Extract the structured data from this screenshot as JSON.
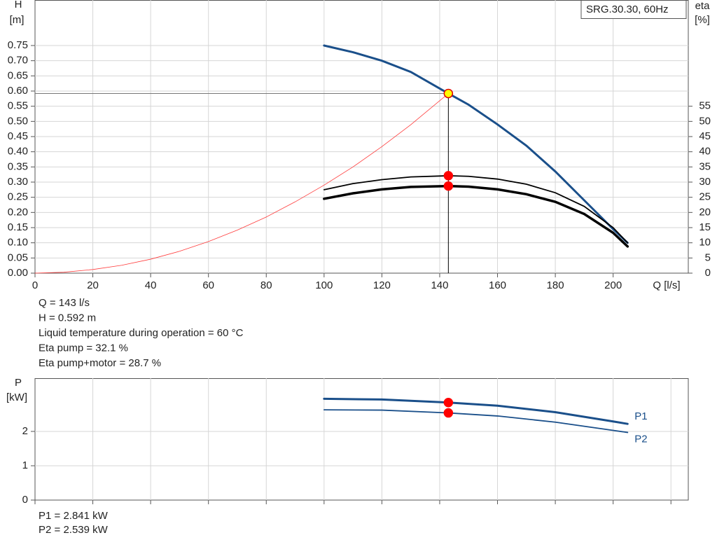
{
  "chart_data": [
    {
      "type": "line",
      "legend_text": "SRG.30.30, 60Hz",
      "xlabel": "Q [l/s]",
      "ylabel": "H",
      "yunit": "[m]",
      "y2label": "eta",
      "y2unit": "[%]",
      "xlim": [
        0,
        226
      ],
      "xticks": [
        0,
        20,
        40,
        60,
        80,
        100,
        120,
        140,
        160,
        180,
        200
      ],
      "ylim": [
        0,
        0.9
      ],
      "yticks": [
        {
          "value": 0,
          "label": "0.00"
        },
        {
          "value": 0.05,
          "label": "0.05"
        },
        {
          "value": 0.1,
          "label": "0.10"
        },
        {
          "value": 0.15,
          "label": "0.15"
        },
        {
          "value": 0.2,
          "label": "0.20"
        },
        {
          "value": 0.25,
          "label": "0.25"
        },
        {
          "value": 0.3,
          "label": "0.30"
        },
        {
          "value": 0.35,
          "label": "0.35"
        },
        {
          "value": 0.4,
          "label": "0.40"
        },
        {
          "value": 0.45,
          "label": "0.45"
        },
        {
          "value": 0.5,
          "label": "0.50"
        },
        {
          "value": 0.55,
          "label": "0.55"
        },
        {
          "value": 0.6,
          "label": "0.60"
        },
        {
          "value": 0.65,
          "label": "0.65"
        },
        {
          "value": 0.7,
          "label": "0.70"
        },
        {
          "value": 0.75,
          "label": "0.75"
        }
      ],
      "y2lim": [
        0,
        90
      ],
      "y2ticks": [
        0,
        5,
        10,
        15,
        20,
        25,
        30,
        35,
        40,
        45,
        50,
        55
      ],
      "grid": true,
      "series": [
        {
          "color": "#9e9e9e",
          "width": 0.8,
          "line_color": "#ff3b3b",
          "x": [
            0,
            10,
            20,
            30,
            40,
            50,
            60,
            70,
            80,
            90,
            100,
            110,
            120,
            130,
            143
          ],
          "values": [
            0,
            0.003,
            0.012,
            0.026,
            0.046,
            0.072,
            0.104,
            0.142,
            0.185,
            0.235,
            0.29,
            0.35,
            0.417,
            0.489,
            0.592
          ]
        },
        {
          "line_color": "#1a4f8a",
          "width": 3,
          "x": [
            100,
            110,
            120,
            130,
            143,
            150,
            160,
            170,
            180,
            190,
            200,
            205
          ],
          "values": [
            0.75,
            0.728,
            0.7,
            0.663,
            0.592,
            0.555,
            0.49,
            0.42,
            0.335,
            0.24,
            0.145,
            0.1
          ]
        },
        {
          "line_color": "#000000",
          "width": 1.8,
          "axis": "y2",
          "x": [
            100,
            110,
            120,
            130,
            143,
            150,
            160,
            170,
            180,
            190,
            200,
            205
          ],
          "values": [
            27.5,
            29.5,
            30.8,
            31.7,
            32.1,
            31.9,
            31,
            29.3,
            26.5,
            22,
            15,
            10
          ]
        },
        {
          "line_color": "#000000",
          "width": 3.5,
          "axis": "y2",
          "x": [
            100,
            110,
            120,
            130,
            143,
            150,
            160,
            170,
            180,
            190,
            200,
            205
          ],
          "values": [
            24.5,
            26.3,
            27.6,
            28.4,
            28.7,
            28.5,
            27.6,
            26,
            23.5,
            19.5,
            13.3,
            8.8
          ]
        }
      ],
      "duty_point": {
        "x": 143,
        "h": 0.592,
        "eta_pump": 32.1,
        "eta_total": 28.7
      },
      "annotations": [
        "Q = 143 l/s",
        "H = 0.592 m",
        "Liquid temperature during operation = 60 °C",
        "Eta pump = 32.1 %",
        "Eta pump+motor = 28.7 %"
      ]
    },
    {
      "type": "line",
      "ylabel": "P",
      "yunit": "[kW]",
      "xlim": [
        0,
        226
      ],
      "xticks": [
        0,
        20,
        40,
        60,
        80,
        100,
        120,
        140,
        160,
        180,
        200,
        220
      ],
      "ylim": [
        0,
        3.55
      ],
      "yticks": [
        0,
        1,
        2
      ],
      "grid": true,
      "series": [
        {
          "name": "P1",
          "line_color": "#1a4f8a",
          "width": 3,
          "x": [
            100,
            120,
            143,
            160,
            180,
            200,
            205
          ],
          "values": [
            2.95,
            2.93,
            2.841,
            2.75,
            2.56,
            2.29,
            2.22
          ]
        },
        {
          "name": "P2",
          "line_color": "#1a4f8a",
          "width": 1.8,
          "x": [
            100,
            120,
            143,
            160,
            180,
            200,
            205
          ],
          "values": [
            2.63,
            2.62,
            2.539,
            2.45,
            2.27,
            2.03,
            1.97
          ]
        }
      ],
      "duty_point": {
        "x": 143,
        "p1": 2.841,
        "p2": 2.539
      },
      "annotations": [
        "P1 = 2.841 kW",
        "P2 = 2.539 kW"
      ]
    }
  ]
}
